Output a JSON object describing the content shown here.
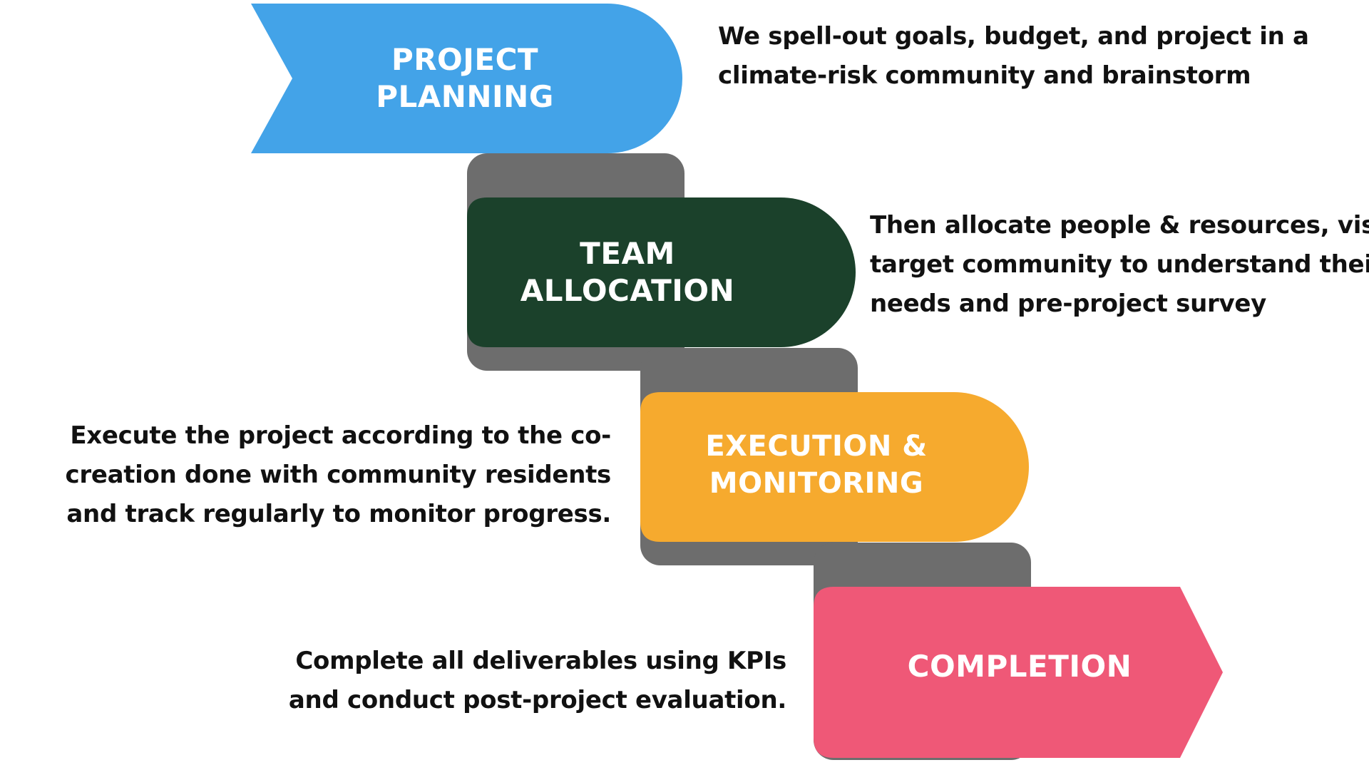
{
  "colors": {
    "planning": "#43A3E8",
    "allocation": "#1B412B",
    "execution": "#F6AA2E",
    "completion": "#EF5877",
    "connector": "#6D6D6D",
    "text": "#111111"
  },
  "steps": [
    {
      "title_lines": [
        "PROJECT",
        "PLANNING"
      ],
      "desc_lines": [
        "We spell-out goals, budget, and project in a",
        "climate-risk community and brainstorm"
      ]
    },
    {
      "title_lines": [
        "TEAM",
        "ALLOCATION"
      ],
      "desc_lines": [
        "Then allocate people & resources, visit",
        "target community to understand their",
        "needs and pre-project survey"
      ]
    },
    {
      "title_lines": [
        "EXECUTION &",
        "MONITORING"
      ],
      "desc_lines": [
        "Execute the project according to the co-",
        "creation done with community residents",
        "and track regularly to monitor progress."
      ]
    },
    {
      "title_lines": [
        "COMPLETION"
      ],
      "desc_lines": [
        "Complete all deliverables using KPIs",
        "and conduct post-project evaluation."
      ]
    }
  ]
}
